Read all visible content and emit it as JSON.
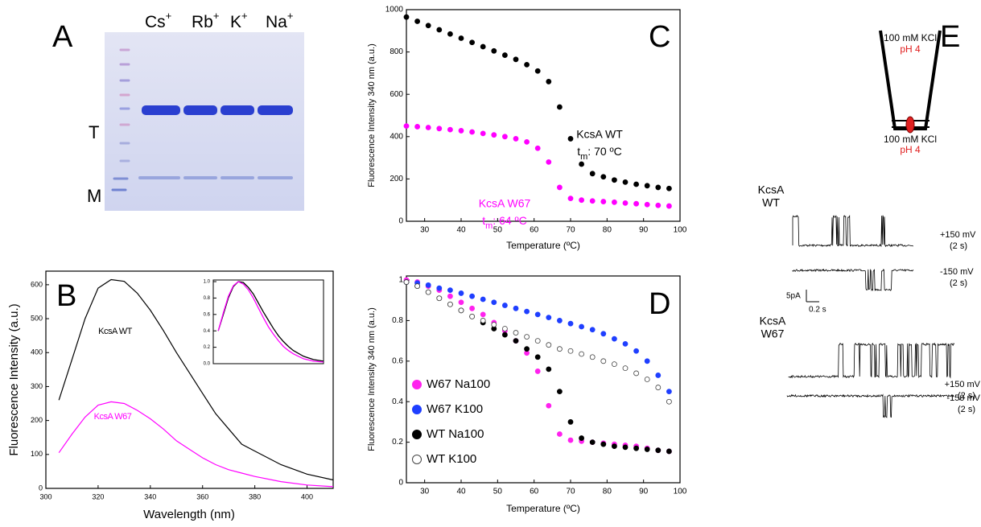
{
  "gel": {
    "panel_label": "A",
    "lanes": [
      {
        "ion": "Cs",
        "charge": "+"
      },
      {
        "ion": "Rb",
        "charge": "+"
      },
      {
        "ion": "K",
        "charge": "+"
      },
      {
        "ion": "Na",
        "charge": "+"
      }
    ],
    "bands": [
      "T",
      "M"
    ]
  },
  "chart_data": [
    {
      "type": "line",
      "panel_label": "B",
      "y_label": "Fluorescence Intensity (a.u.)",
      "x_label": "Wavelength (nm)",
      "x": [
        305,
        310,
        315,
        320,
        325,
        330,
        335,
        340,
        345,
        350,
        355,
        360,
        365,
        370,
        375,
        380,
        390,
        400,
        410
      ],
      "xlim": [
        300,
        410
      ],
      "xticks": [
        300,
        320,
        340,
        360,
        380,
        400
      ],
      "ylim": [
        0,
        640
      ],
      "yticks": [
        0,
        100,
        200,
        300,
        400,
        500,
        600
      ],
      "series": [
        {
          "name": "KcsA WT",
          "color": "#000000",
          "values": [
            260,
            380,
            500,
            590,
            615,
            610,
            575,
            525,
            465,
            400,
            340,
            280,
            220,
            175,
            130,
            110,
            70,
            42,
            25
          ]
        },
        {
          "name": "KcsA W67",
          "color": "#ff00ff",
          "values": [
            105,
            160,
            210,
            245,
            255,
            250,
            230,
            205,
            175,
            140,
            115,
            90,
            70,
            55,
            45,
            35,
            20,
            10,
            5
          ]
        }
      ]
    },
    {
      "type": "line",
      "x": [
        305,
        310,
        315,
        320,
        325,
        330,
        335,
        340,
        345,
        350,
        355,
        360,
        365,
        370,
        375,
        380,
        390,
        400,
        410
      ],
      "xlim": [
        300,
        410
      ],
      "ylim": [
        0,
        1.02
      ],
      "yticks": [
        {
          "value": 0,
          "label": "0.0"
        },
        0.2,
        0.4,
        0.6,
        0.8,
        {
          "value": 1,
          "label": "1.0"
        }
      ],
      "series": [
        {
          "color": "#000000",
          "values": [
            0.4,
            0.6,
            0.8,
            0.94,
            1.0,
            0.99,
            0.93,
            0.85,
            0.74,
            0.63,
            0.53,
            0.43,
            0.34,
            0.27,
            0.21,
            0.16,
            0.09,
            0.05,
            0.03
          ]
        },
        {
          "color": "#ff00ff",
          "values": [
            0.4,
            0.62,
            0.82,
            0.95,
            1.0,
            0.97,
            0.9,
            0.8,
            0.68,
            0.56,
            0.45,
            0.36,
            0.28,
            0.21,
            0.16,
            0.12,
            0.06,
            0.03,
            0.02
          ]
        }
      ]
    },
    {
      "type": "scatter",
      "panel_label": "C",
      "y_label": "Fluorescence Intensity 340 nm (a.u.)",
      "x_label": "Temperature (ºC)",
      "x": [
        25,
        28,
        31,
        34,
        37,
        40,
        43,
        46,
        49,
        52,
        55,
        58,
        61,
        64,
        67,
        70,
        73,
        76,
        79,
        82,
        85,
        88,
        91,
        94,
        97
      ],
      "xlim": [
        25,
        100
      ],
      "xticks": [
        30,
        40,
        50,
        60,
        70,
        80,
        90,
        100
      ],
      "ylim": [
        0,
        1000
      ],
      "yticks": [
        0,
        200,
        400,
        600,
        800,
        1000
      ],
      "series": [
        {
          "name": "KcsA WT",
          "color": "#000000",
          "marker": "filled",
          "tm": {
            "symbol": "t",
            "subscript": "m",
            "text": ": 70 ºC"
          },
          "values": [
            965,
            945,
            925,
            905,
            885,
            865,
            845,
            825,
            805,
            785,
            765,
            740,
            710,
            660,
            540,
            390,
            270,
            225,
            210,
            195,
            185,
            175,
            168,
            160,
            155
          ]
        },
        {
          "name": "KcsA W67",
          "color": "#ff00ff",
          "marker": "filled",
          "tm": {
            "symbol": "t",
            "subscript": "m",
            "text": ": 64 ºC"
          },
          "values": [
            450,
            447,
            443,
            438,
            433,
            428,
            422,
            415,
            408,
            400,
            390,
            375,
            345,
            280,
            160,
            108,
            100,
            96,
            93,
            90,
            86,
            83,
            79,
            75,
            72
          ]
        }
      ]
    },
    {
      "type": "scatter",
      "panel_label": "D",
      "y_label": "Fluorescence Intensity 340 nm (a.u.)",
      "x_label": "Temperature (ºC)",
      "legend": "center left",
      "x": [
        25,
        28,
        31,
        34,
        37,
        40,
        43,
        46,
        49,
        52,
        55,
        58,
        61,
        64,
        67,
        70,
        73,
        76,
        79,
        82,
        85,
        88,
        91,
        94,
        97
      ],
      "xlim": [
        25,
        100
      ],
      "xticks": [
        30,
        40,
        50,
        60,
        70,
        80,
        90,
        100
      ],
      "ylim": [
        0,
        1.02
      ],
      "yticks": [
        0,
        0.2,
        0.4,
        0.6,
        0.8,
        1
      ],
      "series": [
        {
          "name": "W67 Na100",
          "color": "#ff22ee",
          "marker": "filled",
          "values": [
            1.0,
            0.99,
            0.97,
            0.95,
            0.92,
            0.89,
            0.86,
            0.83,
            0.79,
            0.75,
            0.7,
            0.64,
            0.55,
            0.38,
            0.24,
            0.21,
            0.205,
            0.2,
            0.195,
            0.19,
            0.185,
            0.18,
            0.17,
            0.16,
            0.155
          ]
        },
        {
          "name": "W67 K100",
          "color": "#1f3fff",
          "marker": "filled",
          "values": [
            0.99,
            0.985,
            0.975,
            0.96,
            0.95,
            0.935,
            0.92,
            0.905,
            0.89,
            0.875,
            0.86,
            0.845,
            0.83,
            0.815,
            0.8,
            0.785,
            0.77,
            0.755,
            0.735,
            0.71,
            0.685,
            0.65,
            0.6,
            0.53,
            0.45
          ]
        },
        {
          "name": "WT Na100",
          "color": "#000000",
          "marker": "filled",
          "values": [
            0.99,
            0.97,
            0.94,
            0.91,
            0.88,
            0.85,
            0.82,
            0.79,
            0.76,
            0.73,
            0.7,
            0.66,
            0.62,
            0.56,
            0.45,
            0.3,
            0.22,
            0.2,
            0.19,
            0.18,
            0.175,
            0.17,
            0.165,
            0.16,
            0.155
          ]
        },
        {
          "name": "WT K100",
          "color": "#444444",
          "marker": "open",
          "values": [
            0.99,
            0.97,
            0.94,
            0.91,
            0.88,
            0.85,
            0.82,
            0.8,
            0.78,
            0.76,
            0.74,
            0.72,
            0.7,
            0.68,
            0.66,
            0.65,
            0.635,
            0.62,
            0.6,
            0.585,
            0.565,
            0.54,
            0.51,
            0.47,
            0.4
          ]
        }
      ]
    }
  ],
  "recording": {
    "panel_label": "E",
    "chamber": {
      "top": {
        "solution": "100 mM KCl",
        "ph": "pH 4"
      },
      "bottom": {
        "solution": "100 mM KCl",
        "ph": "pH 4"
      }
    },
    "scale_bar": {
      "current": "5pA",
      "time": "0.2 s"
    },
    "constructs": [
      {
        "name": [
          "KcsA",
          "WT"
        ],
        "traces": [
          {
            "voltage": "+150 mV",
            "duration": "(2 s)"
          },
          {
            "voltage": "-150 mV",
            "duration": "(2 s)"
          }
        ]
      },
      {
        "name": [
          "KcsA",
          "W67"
        ],
        "traces": [
          {
            "voltage": "+150 mV",
            "duration": "(2 s)"
          },
          {
            "voltage": "-150 mV",
            "duration": "(2 s)"
          }
        ]
      }
    ]
  }
}
